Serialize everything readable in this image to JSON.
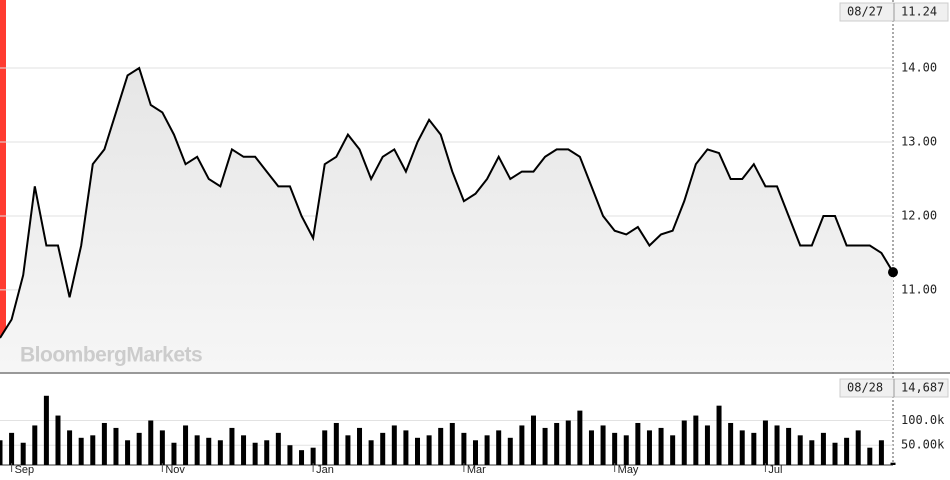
{
  "watermark": "BloombergMarkets",
  "chart_data": [
    {
      "type": "line",
      "color": "#000000",
      "categories": [
        null,
        "Sep",
        null,
        null,
        null,
        null,
        null,
        null,
        null,
        null,
        null,
        null,
        null,
        null,
        "Nov",
        null,
        null,
        null,
        null,
        null,
        null,
        null,
        null,
        null,
        null,
        null,
        null,
        "Jan",
        null,
        null,
        null,
        null,
        null,
        null,
        null,
        null,
        null,
        null,
        null,
        null,
        "Mar",
        null,
        null,
        null,
        null,
        null,
        null,
        null,
        null,
        null,
        null,
        null,
        null,
        "May",
        null,
        null,
        null,
        null,
        null,
        null,
        null,
        null,
        null,
        null,
        null,
        null,
        "Jul",
        null,
        null,
        null,
        null,
        null,
        null,
        null,
        null,
        null,
        null,
        null
      ],
      "values": [
        10.35,
        10.6,
        11.2,
        12.4,
        11.6,
        11.6,
        10.9,
        11.6,
        12.7,
        12.9,
        13.4,
        13.9,
        14.0,
        13.5,
        13.4,
        13.1,
        12.7,
        12.8,
        12.5,
        12.4,
        12.9,
        12.8,
        12.8,
        12.6,
        12.4,
        12.4,
        12.0,
        11.7,
        12.7,
        12.8,
        13.1,
        12.9,
        12.5,
        12.8,
        12.9,
        12.6,
        13.0,
        13.3,
        13.1,
        12.6,
        12.2,
        12.3,
        12.5,
        12.8,
        12.5,
        12.6,
        12.6,
        12.8,
        12.9,
        12.9,
        12.8,
        12.4,
        12.0,
        11.8,
        11.75,
        11.85,
        11.6,
        11.75,
        11.8,
        12.2,
        12.7,
        12.9,
        12.85,
        12.5,
        12.5,
        12.7,
        12.4,
        12.4,
        12.0,
        11.6,
        11.6,
        12.0,
        12.0,
        11.6,
        11.6,
        11.6,
        11.5,
        11.24
      ],
      "ylim": [
        9.89,
        14.92
      ],
      "yticks": [
        {
          "value": 11,
          "label": "11.00"
        },
        {
          "value": 12,
          "label": "12.00"
        },
        {
          "value": 13,
          "label": "13.00"
        },
        {
          "value": 14,
          "label": "14.00"
        }
      ],
      "grid": true,
      "last": {
        "date": "08/27",
        "value": 11.24
      }
    },
    {
      "type": "bar",
      "color": "#000000",
      "values": [
        60000,
        75000,
        55000,
        90000,
        150000,
        110000,
        80000,
        65000,
        70000,
        95000,
        85000,
        60000,
        75000,
        100000,
        80000,
        55000,
        90000,
        70000,
        65000,
        60000,
        85000,
        70000,
        55000,
        60000,
        75000,
        50000,
        40000,
        45000,
        80000,
        95000,
        70000,
        85000,
        60000,
        75000,
        90000,
        80000,
        65000,
        70000,
        85000,
        95000,
        75000,
        60000,
        70000,
        80000,
        65000,
        90000,
        110000,
        85000,
        95000,
        100000,
        120000,
        80000,
        90000,
        75000,
        70000,
        95000,
        80000,
        85000,
        70000,
        100000,
        110000,
        90000,
        130000,
        95000,
        80000,
        75000,
        100000,
        90000,
        85000,
        70000,
        60000,
        75000,
        55000,
        65000,
        80000,
        45000,
        60000,
        14687
      ],
      "ylim": [
        10000,
        190000
      ],
      "yticks": [
        {
          "value": 50000,
          "label": "50.00k"
        },
        {
          "value": 100000,
          "label": "100.0k"
        }
      ],
      "grid": true,
      "last": {
        "date": "08/28",
        "value": {
          "value": 14687,
          "label": "14,687"
        }
      }
    }
  ]
}
